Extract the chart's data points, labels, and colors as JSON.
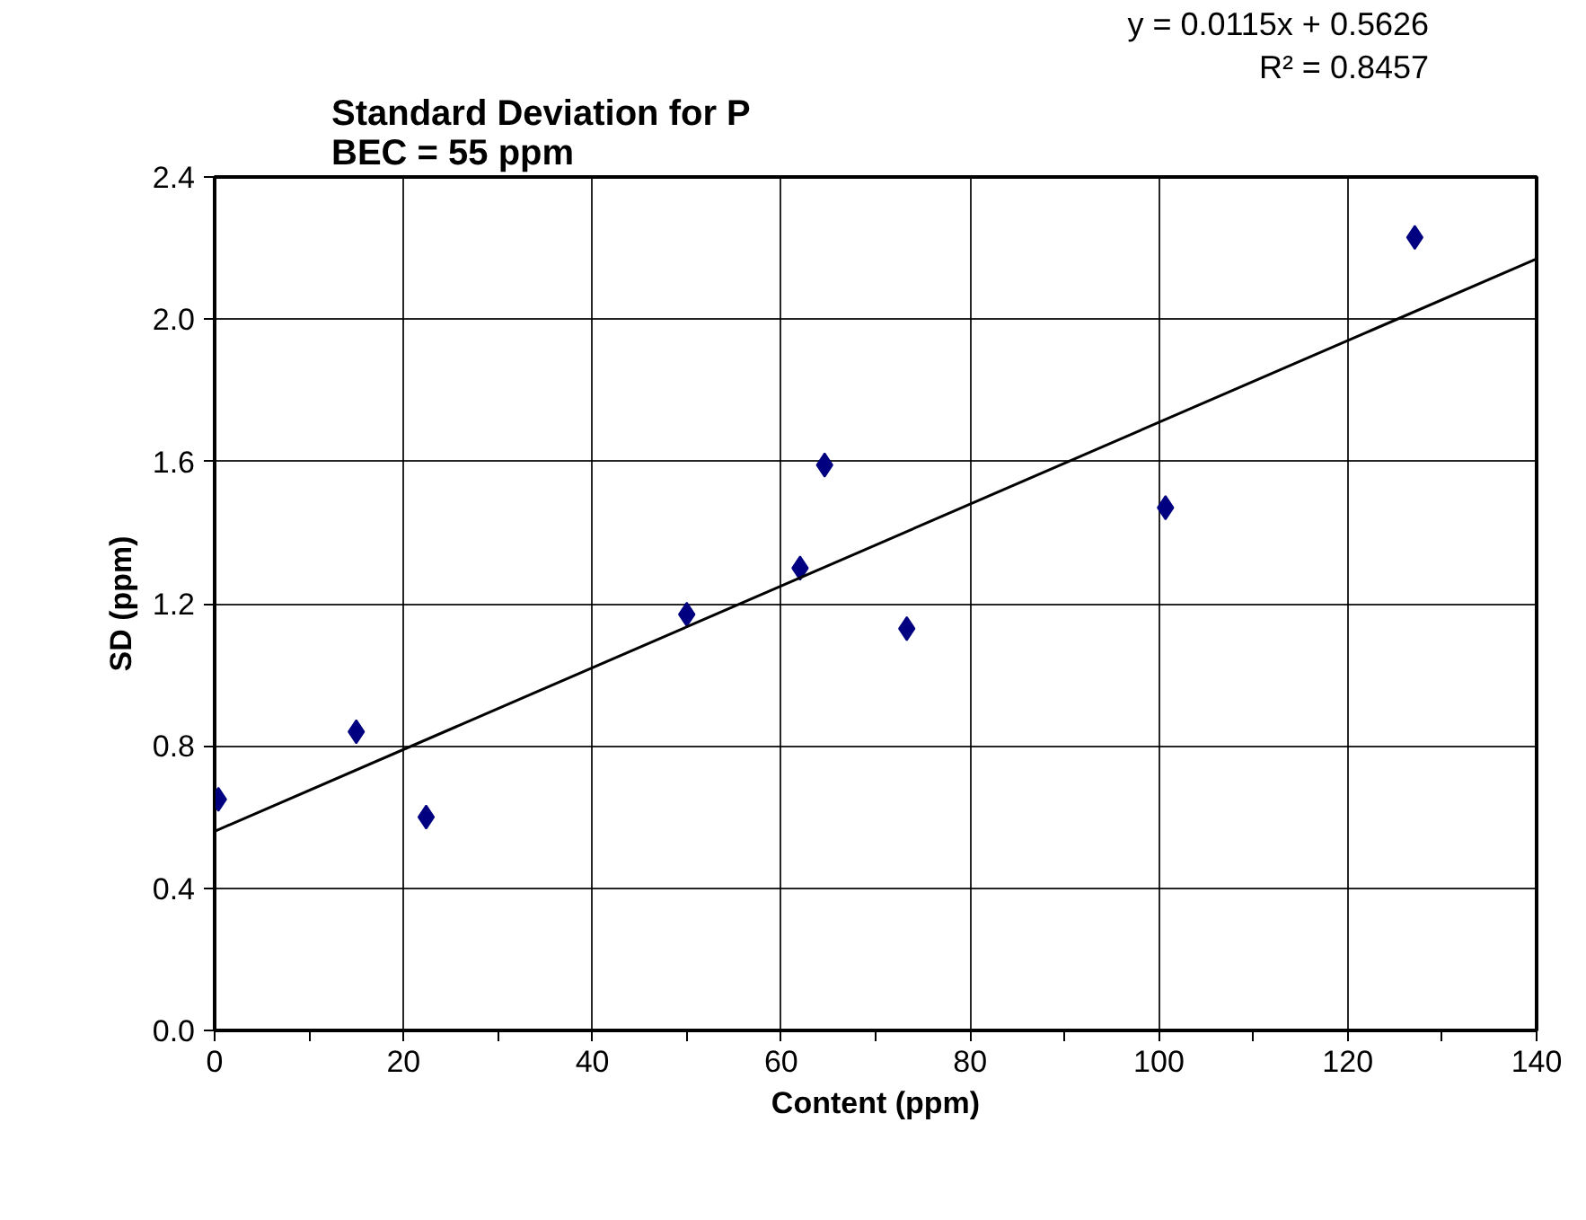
{
  "chart_data": {
    "type": "scatter",
    "title": "Standard Deviation for P\nBEC = 55 ppm",
    "xlabel": "Content (ppm)",
    "ylabel": "SD (ppm)",
    "annotations": [
      "y = 0.0115x + 0.5626",
      "R² = 0.8457"
    ],
    "series": [
      {
        "color": "#000080",
        "marker": "diamond",
        "x": [
          0.4,
          15.0,
          22.4,
          50.0,
          62.0,
          64.6,
          73.3,
          100.7,
          127.1
        ],
        "values": [
          0.65,
          0.84,
          0.6,
          1.17,
          1.3,
          1.59,
          1.13,
          1.47,
          2.23
        ]
      },
      {
        "type": "line",
        "color": "#000000",
        "marker": "none",
        "line_style": "solid",
        "x": [
          0,
          140
        ],
        "values": [
          0.56,
          2.17
        ]
      }
    ],
    "xlim": [
      0,
      140
    ],
    "ylim": [
      0,
      2.4
    ],
    "xticks": [
      0,
      {
        "value": 10,
        "label": null
      },
      20,
      {
        "value": 30,
        "label": null
      },
      40,
      {
        "value": 50,
        "label": null
      },
      60,
      {
        "value": 70,
        "label": null
      },
      80,
      {
        "value": 90,
        "label": null
      },
      100,
      {
        "value": 110,
        "label": null
      },
      120,
      {
        "value": 130,
        "label": null
      },
      140
    ],
    "yticks": [
      {
        "value": 0,
        "label": "0.0"
      },
      {
        "value": 0.4,
        "label": "0.4"
      },
      {
        "value": 0.8,
        "label": "0.8"
      },
      {
        "value": 1.2,
        "label": "1.2"
      },
      {
        "value": 1.6,
        "label": "1.6"
      },
      {
        "value": 2.0,
        "label": "2.0"
      },
      {
        "value": 2.4,
        "label": "2.4"
      }
    ],
    "grid": true
  }
}
